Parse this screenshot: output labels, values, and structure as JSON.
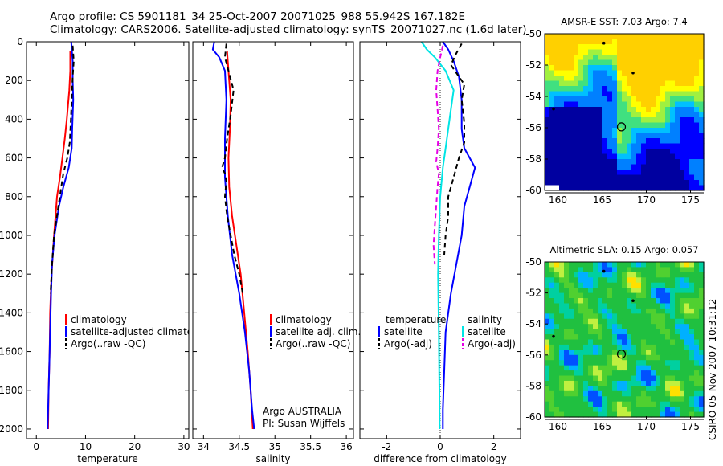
{
  "header": {
    "title_line1": "Argo profile: CS 5901181_34 25-Oct-2007 20071025_988 55.942S 167.182E",
    "title_line2": "Climatology: CARS2006. Satellite-adjusted climatology: synTS_20071027.nc (1.6d later)"
  },
  "side_label": "CSIRO 05-Nov-2007 10:31:12",
  "colors": {
    "red": "#ff0000",
    "blue": "#0000ff",
    "black": "#000000",
    "cyan": "#00e5e5",
    "magenta": "#e600e6"
  },
  "chart_data": [
    {
      "id": "temperature",
      "type": "line",
      "xlabel": "temperature",
      "xlim": [
        -2,
        31
      ],
      "ylim": [
        0,
        2050
      ],
      "y_reversed": true,
      "xticks": [
        0,
        10,
        20,
        30
      ],
      "yticks": [
        0,
        200,
        400,
        600,
        800,
        1000,
        1200,
        1400,
        1600,
        1800,
        2000
      ],
      "legend": [
        "climatology",
        "satellite-adjusted climatology",
        "Argo(..raw -QC)"
      ],
      "series": [
        {
          "name": "climatology",
          "color": "red",
          "dash": false,
          "points": [
            [
              6.9,
              50
            ],
            [
              6.9,
              150
            ],
            [
              6.7,
              250
            ],
            [
              6.2,
              400
            ],
            [
              5.8,
              500
            ],
            [
              5.3,
              600
            ],
            [
              4.8,
              700
            ],
            [
              4.2,
              800
            ],
            [
              3.6,
              1000
            ],
            [
              3.1,
              1200
            ],
            [
              2.8,
              1400
            ],
            [
              2.7,
              1600
            ],
            [
              2.5,
              1800
            ],
            [
              2.4,
              2000
            ]
          ]
        },
        {
          "name": "satellite-adjusted climatology",
          "color": "blue",
          "dash": false,
          "points": [
            [
              7.1,
              0
            ],
            [
              7.4,
              100
            ],
            [
              7.4,
              200
            ],
            [
              7.5,
              300
            ],
            [
              7.3,
              450
            ],
            [
              7.2,
              550
            ],
            [
              6.6,
              650
            ],
            [
              5.5,
              750
            ],
            [
              4.6,
              850
            ],
            [
              3.7,
              1000
            ],
            [
              3.2,
              1150
            ],
            [
              3.0,
              1300
            ],
            [
              2.8,
              1500
            ],
            [
              2.6,
              1700
            ],
            [
              2.4,
              1900
            ],
            [
              2.3,
              2000
            ]
          ]
        },
        {
          "name": "Argo(..raw -QC)",
          "color": "black",
          "dash": true,
          "points": [
            [
              7.4,
              20
            ],
            [
              7.6,
              100
            ],
            [
              7.4,
              180
            ],
            [
              7.2,
              300
            ],
            [
              7.0,
              420
            ],
            [
              6.8,
              520
            ],
            [
              6.3,
              600
            ],
            [
              5.5,
              680
            ],
            [
              4.9,
              780
            ],
            [
              4.3,
              880
            ],
            [
              3.6,
              1000
            ],
            [
              3.2,
              1150
            ],
            [
              2.9,
              1300
            ]
          ]
        }
      ]
    },
    {
      "id": "salinity",
      "type": "line",
      "xlabel": "salinity",
      "xlim": [
        33.85,
        36.1
      ],
      "ylim": [
        0,
        2050
      ],
      "y_reversed": true,
      "xticks": [
        34,
        34.5,
        35,
        35.5,
        36
      ],
      "yticks": [
        0,
        200,
        400,
        600,
        800,
        1000,
        1200,
        1400,
        1600,
        1800,
        2000
      ],
      "legend": [
        "climatology",
        "satellite adj. clim.",
        "Argo(..raw -QC)"
      ],
      "annotations": [
        "Argo AUSTRALIA",
        "PI: Susan Wijffels"
      ],
      "series": [
        {
          "name": "climatology",
          "color": "red",
          "dash": false,
          "points": [
            [
              34.33,
              50
            ],
            [
              34.35,
              150
            ],
            [
              34.38,
              300
            ],
            [
              34.37,
              450
            ],
            [
              34.35,
              600
            ],
            [
              34.36,
              750
            ],
            [
              34.4,
              900
            ],
            [
              34.46,
              1050
            ],
            [
              34.52,
              1200
            ],
            [
              34.57,
              1400
            ],
            [
              34.62,
              1600
            ],
            [
              34.66,
              1800
            ],
            [
              34.69,
              2000
            ]
          ]
        },
        {
          "name": "satellite adj. clim.",
          "color": "blue",
          "dash": false,
          "points": [
            [
              34.15,
              0
            ],
            [
              34.13,
              40
            ],
            [
              34.22,
              80
            ],
            [
              34.3,
              150
            ],
            [
              34.32,
              300
            ],
            [
              34.3,
              500
            ],
            [
              34.3,
              700
            ],
            [
              34.34,
              900
            ],
            [
              34.4,
              1100
            ],
            [
              34.5,
              1300
            ],
            [
              34.58,
              1500
            ],
            [
              34.64,
              1700
            ],
            [
              34.68,
              1900
            ],
            [
              34.71,
              2000
            ]
          ]
        },
        {
          "name": "Argo(..raw -QC)",
          "color": "black",
          "dash": true,
          "points": [
            [
              34.32,
              10
            ],
            [
              34.3,
              80
            ],
            [
              34.35,
              150
            ],
            [
              34.42,
              250
            ],
            [
              34.38,
              380
            ],
            [
              34.33,
              500
            ],
            [
              34.3,
              600
            ],
            [
              34.26,
              650
            ],
            [
              34.3,
              680
            ],
            [
              34.32,
              720
            ],
            [
              34.3,
              800
            ],
            [
              34.33,
              900
            ],
            [
              34.38,
              1000
            ],
            [
              34.43,
              1100
            ],
            [
              34.5,
              1200
            ],
            [
              34.55,
              1300
            ]
          ]
        }
      ]
    },
    {
      "id": "difference",
      "type": "line",
      "xlabel": "difference from climatology",
      "xlim": [
        -3,
        3
      ],
      "ylim": [
        0,
        2050
      ],
      "y_reversed": true,
      "xticks": [
        -2,
        0,
        2
      ],
      "yticks": [
        0,
        200,
        400,
        600,
        800,
        1000,
        1200,
        1400,
        1600,
        1800,
        2000
      ],
      "legend_groups": [
        {
          "title": "temperature",
          "items": [
            "satellite",
            "Argo(-adj)"
          ]
        },
        {
          "title": "salinity",
          "items": [
            "satellite",
            "Argo(-adj)"
          ]
        }
      ],
      "series": [
        {
          "name": "temperature satellite",
          "color": "blue",
          "dash": false,
          "points": [
            [
              0.1,
              0
            ],
            [
              0.3,
              40
            ],
            [
              0.5,
              100
            ],
            [
              0.7,
              180
            ],
            [
              0.8,
              300
            ],
            [
              0.8,
              450
            ],
            [
              0.9,
              550
            ],
            [
              1.3,
              650
            ],
            [
              1.1,
              750
            ],
            [
              0.9,
              850
            ],
            [
              0.8,
              1000
            ],
            [
              0.6,
              1150
            ],
            [
              0.4,
              1300
            ],
            [
              0.2,
              1500
            ],
            [
              0.15,
              1700
            ],
            [
              0.1,
              1900
            ],
            [
              0.1,
              2000
            ]
          ]
        },
        {
          "name": "temperature Argo(-adj)",
          "color": "black",
          "dash": true,
          "points": [
            [
              0.8,
              10
            ],
            [
              0.6,
              60
            ],
            [
              0.4,
              120
            ],
            [
              0.7,
              180
            ],
            [
              0.9,
              220
            ],
            [
              0.8,
              300
            ],
            [
              0.9,
              420
            ],
            [
              0.9,
              520
            ],
            [
              0.7,
              600
            ],
            [
              0.5,
              700
            ],
            [
              0.3,
              800
            ],
            [
              0.3,
              900
            ],
            [
              0.2,
              1000
            ],
            [
              0.15,
              1100
            ]
          ]
        },
        {
          "name": "salinity satellite",
          "color": "cyan",
          "dash": false,
          "points": [
            [
              -0.7,
              0
            ],
            [
              -0.5,
              40
            ],
            [
              -0.2,
              80
            ],
            [
              0.2,
              150
            ],
            [
              0.5,
              250
            ],
            [
              0.4,
              350
            ],
            [
              0.3,
              450
            ],
            [
              0.2,
              550
            ],
            [
              0.1,
              650
            ],
            [
              0.0,
              800
            ],
            [
              -0.05,
              1000
            ],
            [
              -0.08,
              1200
            ],
            [
              -0.05,
              1500
            ],
            [
              -0.03,
              1800
            ],
            [
              -0.02,
              2000
            ]
          ]
        },
        {
          "name": "salinity Argo(-adj)",
          "color": "magenta",
          "dash": true,
          "points": [
            [
              0.1,
              20
            ],
            [
              0.0,
              80
            ],
            [
              -0.1,
              150
            ],
            [
              -0.15,
              250
            ],
            [
              -0.1,
              350
            ],
            [
              -0.05,
              450
            ],
            [
              -0.1,
              550
            ],
            [
              -0.15,
              620
            ],
            [
              -0.05,
              680
            ],
            [
              -0.1,
              750
            ],
            [
              -0.15,
              850
            ],
            [
              -0.2,
              950
            ],
            [
              -0.25,
              1050
            ],
            [
              -0.2,
              1150
            ]
          ]
        }
      ]
    },
    {
      "id": "amsr_sst_map",
      "type": "heatmap",
      "title": "AMSR-E SST: 7.03 Argo: 7.4",
      "xlim": [
        158.5,
        176.5
      ],
      "ylim": [
        -60,
        -50
      ],
      "xticks": [
        160,
        165,
        170,
        175
      ],
      "yticks": [
        -50,
        -52,
        -54,
        -56,
        -58,
        -60
      ],
      "marker": {
        "lon": 167.182,
        "lat": -55.942
      }
    },
    {
      "id": "sla_map",
      "type": "heatmap",
      "title": "Altimetric SLA: 0.15 Argo: 0.057",
      "xlim": [
        158.5,
        176.5
      ],
      "ylim": [
        -60,
        -50
      ],
      "xticks": [
        160,
        165,
        170,
        175
      ],
      "yticks": [
        -50,
        -52,
        -54,
        -56,
        -58,
        -60
      ],
      "marker": {
        "lon": 167.182,
        "lat": -55.942
      }
    }
  ]
}
